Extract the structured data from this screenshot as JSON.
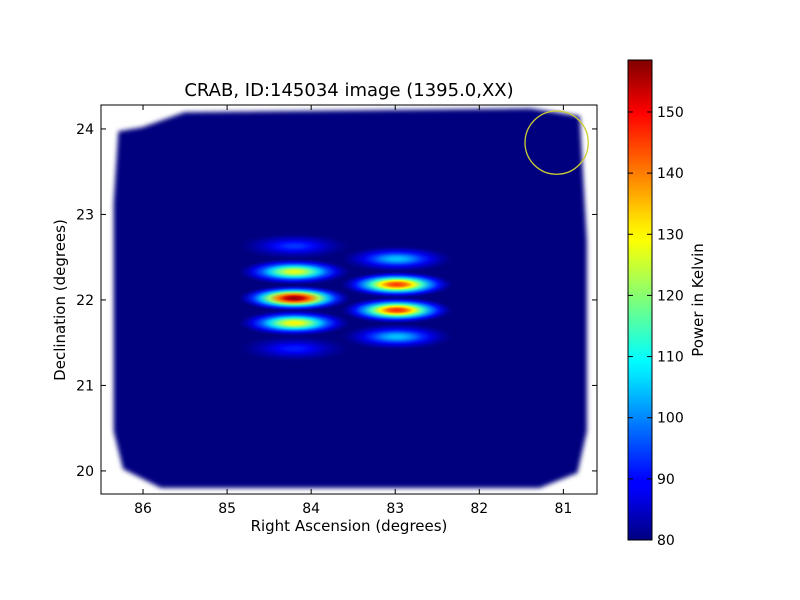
{
  "chart_data": {
    "type": "heatmap",
    "title": "CRAB, ID:145034 image (1395.0,XX)",
    "xlabel": "Right Ascension (degrees)",
    "ylabel": "Declination (degrees)",
    "xlim": [
      86.5,
      80.6
    ],
    "ylim": [
      19.73,
      24.28
    ],
    "x_ticks": [
      86,
      85,
      84,
      83,
      82,
      81
    ],
    "y_ticks": [
      20,
      21,
      22,
      23,
      24
    ],
    "x_tick_labels": [
      "86",
      "85",
      "84",
      "83",
      "82",
      "81"
    ],
    "y_tick_labels": [
      "20",
      "21",
      "22",
      "23",
      "24"
    ],
    "grid": false,
    "colormap": "jet",
    "background_level": 80,
    "colorbar": {
      "label": "Power in Kelvin",
      "range": [
        80,
        158.5
      ],
      "ticks": [
        80,
        90,
        100,
        110,
        120,
        130,
        140,
        150
      ],
      "tick_labels": [
        "80",
        "90",
        "100",
        "110",
        "120",
        "130",
        "140",
        "150"
      ],
      "placement": "right"
    },
    "footprint": {
      "ra_range": [
        86.35,
        80.72
      ],
      "dec_range": [
        19.8,
        24.24
      ]
    },
    "sources": [
      {
        "ra": 84.2,
        "dec": 22.63,
        "peak": 94
      },
      {
        "ra": 84.2,
        "dec": 22.33,
        "peak": 128
      },
      {
        "ra": 84.2,
        "dec": 22.02,
        "peak": 158
      },
      {
        "ra": 84.2,
        "dec": 21.73,
        "peak": 130
      },
      {
        "ra": 84.2,
        "dec": 21.43,
        "peak": 92
      },
      {
        "ra": 82.98,
        "dec": 22.48,
        "peak": 105
      },
      {
        "ra": 82.98,
        "dec": 22.18,
        "peak": 145
      },
      {
        "ra": 82.98,
        "dec": 21.88,
        "peak": 146
      },
      {
        "ra": 82.98,
        "dec": 21.57,
        "peak": 105
      }
    ],
    "beam_circle": {
      "ra": 81.08,
      "dec": 23.84,
      "radius_deg": 0.37,
      "color": "#cccc33"
    }
  }
}
